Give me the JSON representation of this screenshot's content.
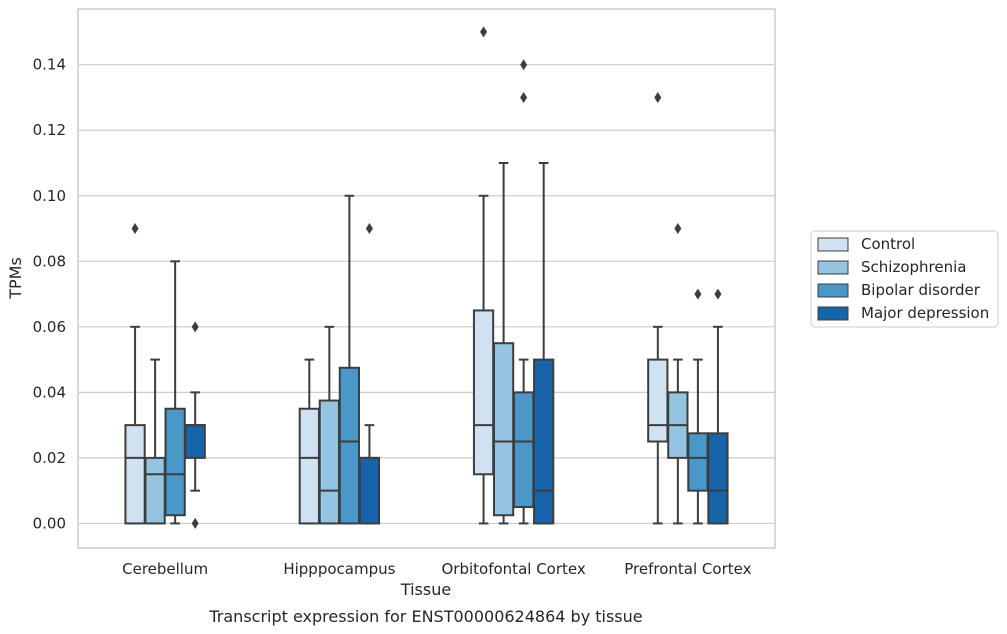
{
  "caption": "Transcript expression for ENST00000624864 by tissue",
  "chart_data": {
    "type": "box",
    "title": "",
    "xlabel": "Tissue",
    "ylabel": "TPMs",
    "ylim": [
      -0.0075,
      0.157
    ],
    "yticks": [
      "0.00",
      "0.02",
      "0.04",
      "0.06",
      "0.08",
      "0.10",
      "0.12",
      "0.14"
    ],
    "grid": "horizontal",
    "legend_position": "right",
    "categories": [
      "Cerebellum",
      "Hipppocampus",
      "Orbitofontal Cortex",
      "Prefrontal Cortex"
    ],
    "series": [
      {
        "name": "Control",
        "color": "#d0e1f2",
        "boxes": [
          {
            "whislo": 0.0,
            "q1": 0.0,
            "med": 0.02,
            "q3": 0.03,
            "whishi": 0.06,
            "fliers": [
              0.09
            ]
          },
          {
            "whislo": 0.0,
            "q1": 0.0,
            "med": 0.02,
            "q3": 0.035,
            "whishi": 0.05,
            "fliers": []
          },
          {
            "whislo": 0.0,
            "q1": 0.015,
            "med": 0.03,
            "q3": 0.065,
            "whishi": 0.1,
            "fliers": [
              0.15
            ]
          },
          {
            "whislo": 0.0,
            "q1": 0.025,
            "med": 0.03,
            "q3": 0.05,
            "whishi": 0.06,
            "fliers": [
              0.13
            ]
          }
        ]
      },
      {
        "name": "Schizophrenia",
        "color": "#94c4df",
        "boxes": [
          {
            "whislo": 0.0,
            "q1": 0.0,
            "med": 0.015,
            "q3": 0.02,
            "whishi": 0.05,
            "fliers": []
          },
          {
            "whislo": 0.0,
            "q1": 0.0,
            "med": 0.01,
            "q3": 0.0375,
            "whishi": 0.06,
            "fliers": []
          },
          {
            "whislo": 0.0,
            "q1": 0.0025,
            "med": 0.025,
            "q3": 0.055,
            "whishi": 0.11,
            "fliers": []
          },
          {
            "whislo": 0.0,
            "q1": 0.02,
            "med": 0.03,
            "q3": 0.04,
            "whishi": 0.05,
            "fliers": [
              0.09
            ]
          }
        ]
      },
      {
        "name": "Bipolar disorder",
        "color": "#4a98c9",
        "boxes": [
          {
            "whislo": 0.0,
            "q1": 0.0025,
            "med": 0.015,
            "q3": 0.035,
            "whishi": 0.08,
            "fliers": []
          },
          {
            "whislo": 0.0,
            "q1": 0.0,
            "med": 0.025,
            "q3": 0.0475,
            "whishi": 0.1,
            "fliers": []
          },
          {
            "whislo": 0.0,
            "q1": 0.005,
            "med": 0.025,
            "q3": 0.04,
            "whishi": 0.05,
            "fliers": [
              0.13,
              0.14
            ]
          },
          {
            "whislo": 0.0,
            "q1": 0.01,
            "med": 0.02,
            "q3": 0.0275,
            "whishi": 0.05,
            "fliers": [
              0.07
            ]
          }
        ]
      },
      {
        "name": "Major depression",
        "color": "#1764ab",
        "boxes": [
          {
            "whislo": 0.01,
            "q1": 0.02,
            "med": 0.03,
            "q3": 0.03,
            "whishi": 0.04,
            "fliers": [
              0.0,
              0.06
            ]
          },
          {
            "whislo": 0.0,
            "q1": 0.0,
            "med": 0.02,
            "q3": 0.02,
            "whishi": 0.03,
            "fliers": [
              0.09
            ]
          },
          {
            "whislo": 0.0,
            "q1": 0.0,
            "med": 0.01,
            "q3": 0.05,
            "whishi": 0.11,
            "fliers": []
          },
          {
            "whislo": 0.0,
            "q1": 0.0,
            "med": 0.01,
            "q3": 0.0275,
            "whishi": 0.06,
            "fliers": [
              0.07
            ]
          }
        ]
      }
    ]
  }
}
